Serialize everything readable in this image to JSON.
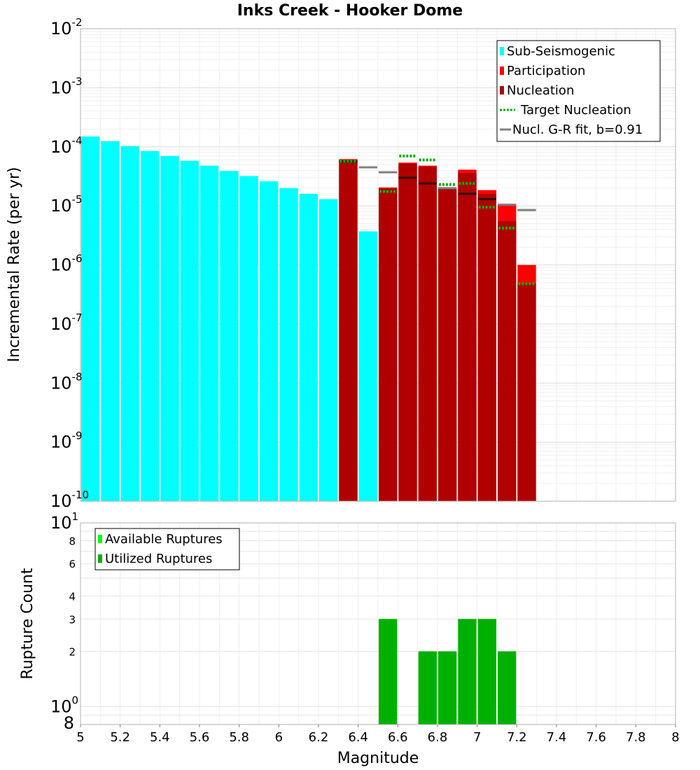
{
  "chart_data": [
    {
      "type": "bar",
      "title": "Inks Creek - Hooker Dome",
      "xlabel": "",
      "ylabel": "Incremental Rate (per yr)",
      "xlim": [
        5,
        8
      ],
      "ylim": [
        1e-10,
        0.01
      ],
      "yscale": "log",
      "grid": true,
      "bar_width": 0.1,
      "legend_position": "top-right",
      "y_ticks": [
        {
          "base": "10",
          "exp": "-2",
          "value": 0.01
        },
        {
          "base": "10",
          "exp": "-3",
          "value": 0.001
        },
        {
          "base": "10",
          "exp": "-4",
          "value": 0.0001
        },
        {
          "base": "10",
          "exp": "-5",
          "value": 1e-05
        },
        {
          "base": "10",
          "exp": "-6",
          "value": 1e-06
        },
        {
          "base": "10",
          "exp": "-7",
          "value": 1e-07
        },
        {
          "base": "10",
          "exp": "-8",
          "value": 1e-08
        },
        {
          "base": "10",
          "exp": "-9",
          "value": 1e-09
        },
        {
          "base": "10",
          "exp": "-10",
          "value": 1e-10
        }
      ],
      "colors": {
        "sub_seismogenic": "#00ffff",
        "participation": "#ff0000",
        "nucleation": "#b00000",
        "target_nucleation": "#00b000",
        "gr_fit": "#808080"
      },
      "legend": [
        {
          "label": "Sub-Seismogenic",
          "kind": "box",
          "color": "#00ffff"
        },
        {
          "label": "Participation",
          "kind": "box",
          "color": "#ff0000"
        },
        {
          "label": "Nucleation",
          "kind": "box",
          "color": "#b00000"
        },
        {
          "label": "Target Nucleation",
          "kind": "dotted",
          "color": "#00b000"
        },
        {
          "label": "Nucl. G-R fit, b=0.91",
          "kind": "line",
          "color": "#808080"
        }
      ],
      "series": [
        {
          "name": "Sub-Seismogenic",
          "x": [
            5.05,
            5.15,
            5.25,
            5.35,
            5.45,
            5.55,
            5.65,
            5.75,
            5.85,
            5.95,
            6.05,
            6.15,
            6.25,
            6.45
          ],
          "values": [
            0.00015,
            0.000125,
            0.000103,
            8.5e-05,
            7e-05,
            5.8e-05,
            4.8e-05,
            3.9e-05,
            3.2e-05,
            2.6e-05,
            2e-05,
            1.6e-05,
            1.3e-05,
            3.7e-06
          ]
        },
        {
          "name": "Participation",
          "x": [
            6.35,
            6.55,
            6.65,
            6.75,
            6.85,
            6.95,
            7.05,
            7.15,
            7.25
          ],
          "values": [
            6.2e-05,
            2.05e-05,
            5.4e-05,
            4.8e-05,
            2e-05,
            4.1e-05,
            1.85e-05,
            1.05e-05,
            1e-06
          ]
        },
        {
          "name": "Nucleation",
          "x": [
            6.35,
            6.55,
            6.65,
            6.75,
            6.85,
            6.95,
            7.05,
            7.15,
            7.25
          ],
          "values": [
            6e-05,
            2e-05,
            5.2e-05,
            4.6e-05,
            1.95e-05,
            3.6e-05,
            1.6e-05,
            5.5e-06,
            4.8e-07
          ]
        },
        {
          "name": "Target Nucleation",
          "x": [
            6.35,
            6.55,
            6.65,
            6.75,
            6.85,
            6.95,
            7.05,
            7.15,
            7.25
          ],
          "values": [
            5.7e-05,
            1.75e-05,
            7e-05,
            6e-05,
            2.3e-05,
            2.4e-05,
            9.5e-06,
            4.2e-06,
            4.8e-07
          ]
        },
        {
          "name": "Nucl. G-R fit, b=0.91",
          "x": [
            6.35,
            6.45,
            6.55,
            6.65,
            6.75,
            6.85,
            6.95,
            7.05,
            7.15,
            7.25
          ],
          "values": [
            5.6e-05,
            4.5e-05,
            3.7e-05,
            3e-05,
            2.4e-05,
            2e-05,
            1.6e-05,
            1.3e-05,
            1.05e-05,
            8.5e-06
          ]
        }
      ]
    },
    {
      "type": "bar",
      "title": "",
      "xlabel": "Magnitude",
      "ylabel": "Rupture Count",
      "xlim": [
        5,
        8
      ],
      "ylim": [
        0.8,
        10
      ],
      "yscale": "log",
      "grid": true,
      "bar_width": 0.1,
      "legend_position": "top-left",
      "x_ticks": [
        "5",
        "5.2",
        "5.4",
        "5.6",
        "5.8",
        "6",
        "6.2",
        "6.4",
        "6.6",
        "6.8",
        "7",
        "7.2",
        "7.4",
        "7.6",
        "7.8",
        "8"
      ],
      "y_major_ticks": [
        {
          "base": "10",
          "exp": "1",
          "value": 10
        },
        {
          "base": "10",
          "exp": "0",
          "value": 1
        }
      ],
      "y_minor_ticks": [
        {
          "label": "8",
          "value": 8
        },
        {
          "label": "6",
          "value": 6
        },
        {
          "label": "4",
          "value": 4
        },
        {
          "label": "3",
          "value": 3
        },
        {
          "label": "2",
          "value": 2
        },
        {
          "label": "8",
          "value": 0.8
        }
      ],
      "colors": {
        "available": "#00ff00",
        "utilized": "#00b000"
      },
      "legend": [
        {
          "label": "Available Ruptures",
          "kind": "box",
          "color": "#00ff00"
        },
        {
          "label": "Utilized Ruptures",
          "kind": "box",
          "color": "#00b000"
        }
      ],
      "series": [
        {
          "name": "Utilized Ruptures",
          "x": [
            6.55,
            6.75,
            6.85,
            6.95,
            7.05,
            7.15
          ],
          "values": [
            3,
            2,
            2,
            3,
            3,
            2
          ]
        }
      ]
    }
  ]
}
